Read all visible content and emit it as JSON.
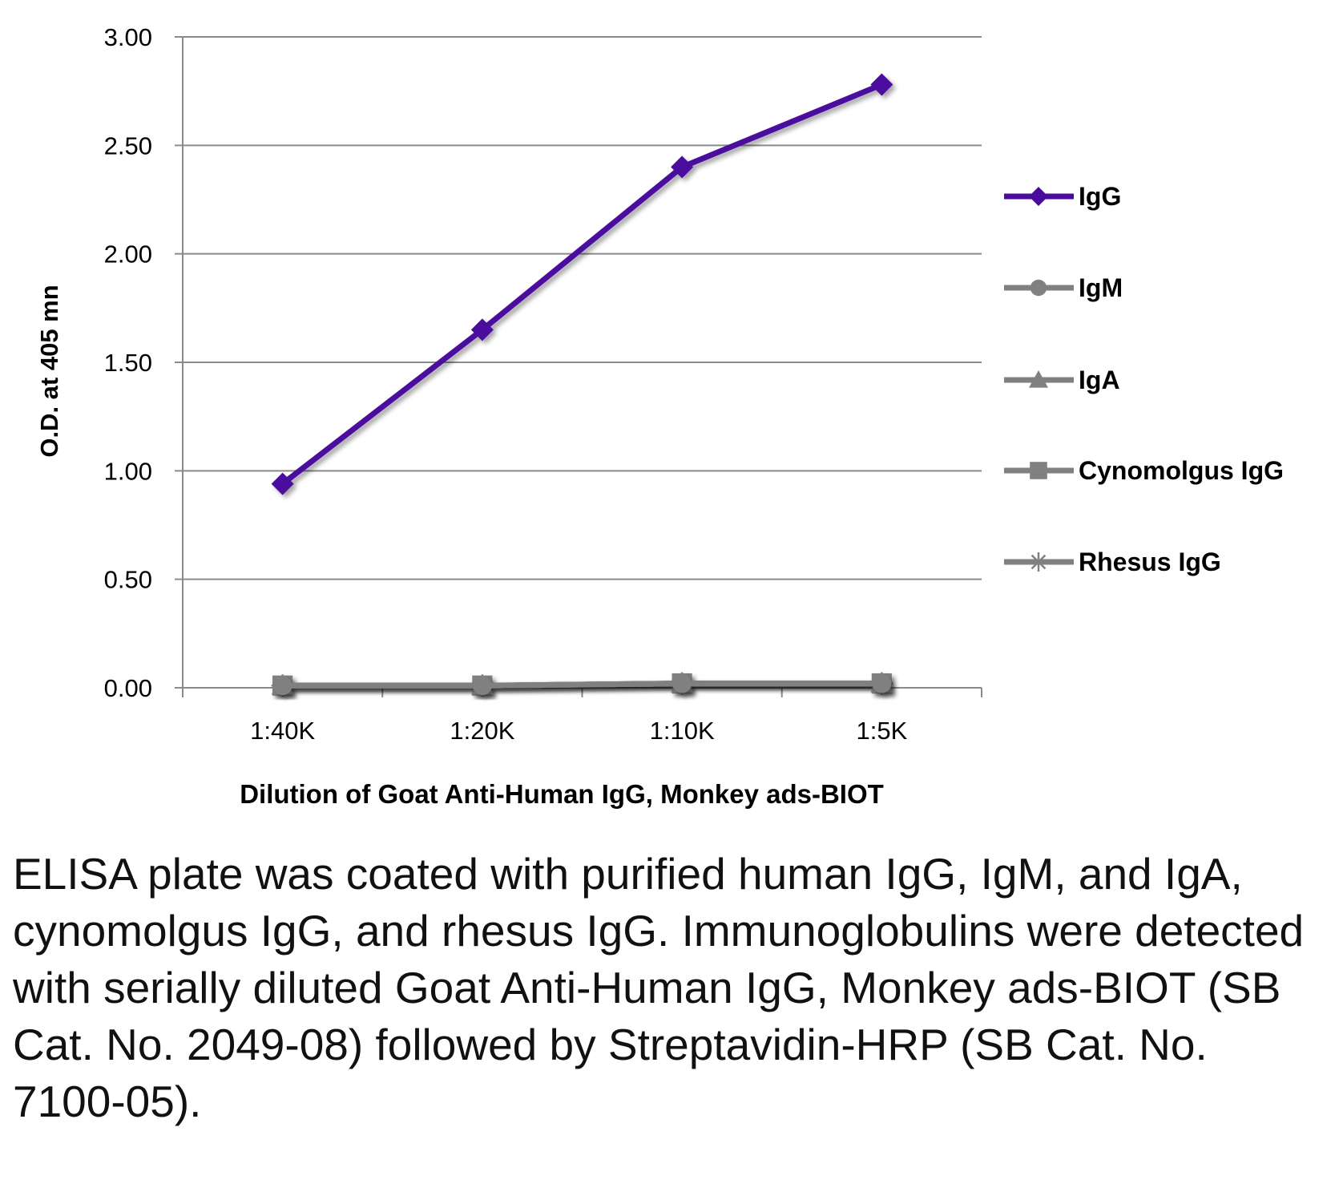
{
  "chart_data": {
    "type": "line",
    "xlabel": "Dilution of Goat Anti-Human IgG, Monkey ads-BIOT",
    "ylabel": "O.D. at 405 mn",
    "categories": [
      "1:40K",
      "1:20K",
      "1:10K",
      "1:5K"
    ],
    "ylim": [
      0,
      3
    ],
    "yticks": [
      "0.00",
      "0.50",
      "1.00",
      "1.50",
      "2.00",
      "2.50",
      "3.00"
    ],
    "grid": true,
    "legend_position": "right",
    "series": [
      {
        "name": "IgG",
        "values": [
          0.94,
          1.65,
          2.4,
          2.78
        ],
        "color": "#4B0C9E",
        "marker": "diamond"
      },
      {
        "name": "IgM",
        "values": [
          0.01,
          0.01,
          0.02,
          0.02
        ],
        "color": "#808080",
        "marker": "circle"
      },
      {
        "name": "IgA",
        "values": [
          0.01,
          0.01,
          0.02,
          0.02
        ],
        "color": "#808080",
        "marker": "triangle"
      },
      {
        "name": "Cynomolgus IgG",
        "values": [
          0.01,
          0.01,
          0.02,
          0.02
        ],
        "color": "#808080",
        "marker": "square"
      },
      {
        "name": "Rhesus IgG",
        "values": [
          0.01,
          0.01,
          0.02,
          0.02
        ],
        "color": "#808080",
        "marker": "star"
      }
    ]
  },
  "caption": "ELISA plate was coated with purified human IgG, IgM, and IgA, cynomolgus IgG, and rhesus IgG.  Immunoglobulins were detected with serially diluted Goat Anti-Human IgG, Monkey ads-BIOT (SB Cat. No. 2049-08) followed by Streptavidin-HRP (SB Cat. No. 7100-05)."
}
